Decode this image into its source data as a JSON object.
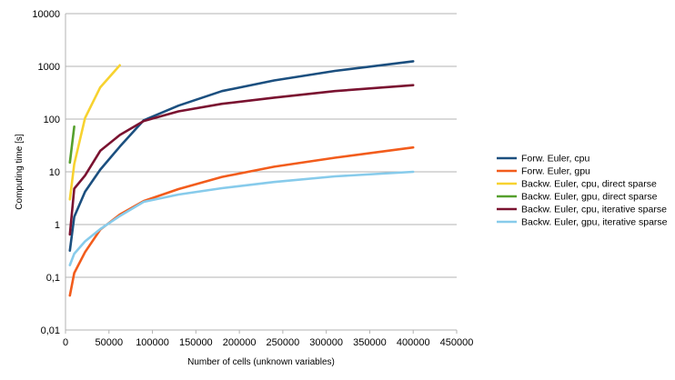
{
  "chart_data": {
    "type": "line",
    "xlabel": "Number of cells (unknown variables)",
    "ylabel": "Computing time [s]",
    "xlim": [
      0,
      450000
    ],
    "ylim": [
      0.01,
      10000
    ],
    "y_scale": "log",
    "grid": "horizontal",
    "legend_position": "right",
    "x_ticks": [
      "0",
      "50000",
      "100000",
      "150000",
      "200000",
      "250000",
      "300000",
      "350000",
      "400000",
      "450000"
    ],
    "x_tick_values": [
      0,
      50000,
      100000,
      150000,
      200000,
      250000,
      300000,
      350000,
      400000,
      450000
    ],
    "y_ticks": [
      "0,01",
      "0,1",
      "1",
      "10",
      "100",
      "1000",
      "10000"
    ],
    "y_tick_values": [
      0.01,
      0.1,
      1,
      10,
      100,
      1000,
      10000
    ],
    "series": [
      {
        "name": "Forw. Euler, cpu",
        "color": "#1b4f7f",
        "x": [
          5000,
          10000,
          22500,
          40000,
          62500,
          90000,
          130000,
          180000,
          240000,
          310000,
          400000
        ],
        "y": [
          0.32,
          1.4,
          4.2,
          11,
          30,
          95,
          180,
          340,
          540,
          820,
          1250
        ]
      },
      {
        "name": "Forw. Euler, gpu",
        "color": "#f25c1c",
        "x": [
          5000,
          10000,
          22500,
          40000,
          62500,
          90000,
          130000,
          180000,
          240000,
          310000,
          400000
        ],
        "y": [
          0.045,
          0.12,
          0.3,
          0.8,
          1.55,
          2.8,
          4.7,
          8,
          12.5,
          18.5,
          29
        ]
      },
      {
        "name": "Backw. Euler, cpu, direct sparse",
        "color": "#f7d22f",
        "x": [
          5000,
          10000,
          22500,
          40000,
          62500
        ],
        "y": [
          3,
          14,
          105,
          400,
          1050
        ]
      },
      {
        "name": "Backw. Euler, gpu, direct sparse",
        "color": "#55a02d",
        "x": [
          5000,
          10000
        ],
        "y": [
          15,
          72
        ]
      },
      {
        "name": "Backw. Euler, cpu, iterative sparse",
        "color": "#7a1230",
        "x": [
          5000,
          10000,
          22500,
          40000,
          62500,
          90000,
          130000,
          180000,
          240000,
          310000,
          400000
        ],
        "y": [
          0.65,
          4.8,
          8.5,
          25,
          50,
          92,
          140,
          195,
          255,
          340,
          440
        ]
      },
      {
        "name": "Backw. Euler, gpu, iterative sparse",
        "color": "#87cbeb",
        "x": [
          5000,
          10000,
          22500,
          40000,
          62500,
          90000,
          130000,
          180000,
          240000,
          310000,
          400000
        ],
        "y": [
          0.17,
          0.28,
          0.48,
          0.82,
          1.45,
          2.7,
          3.7,
          4.9,
          6.4,
          8.2,
          10
        ]
      }
    ]
  }
}
